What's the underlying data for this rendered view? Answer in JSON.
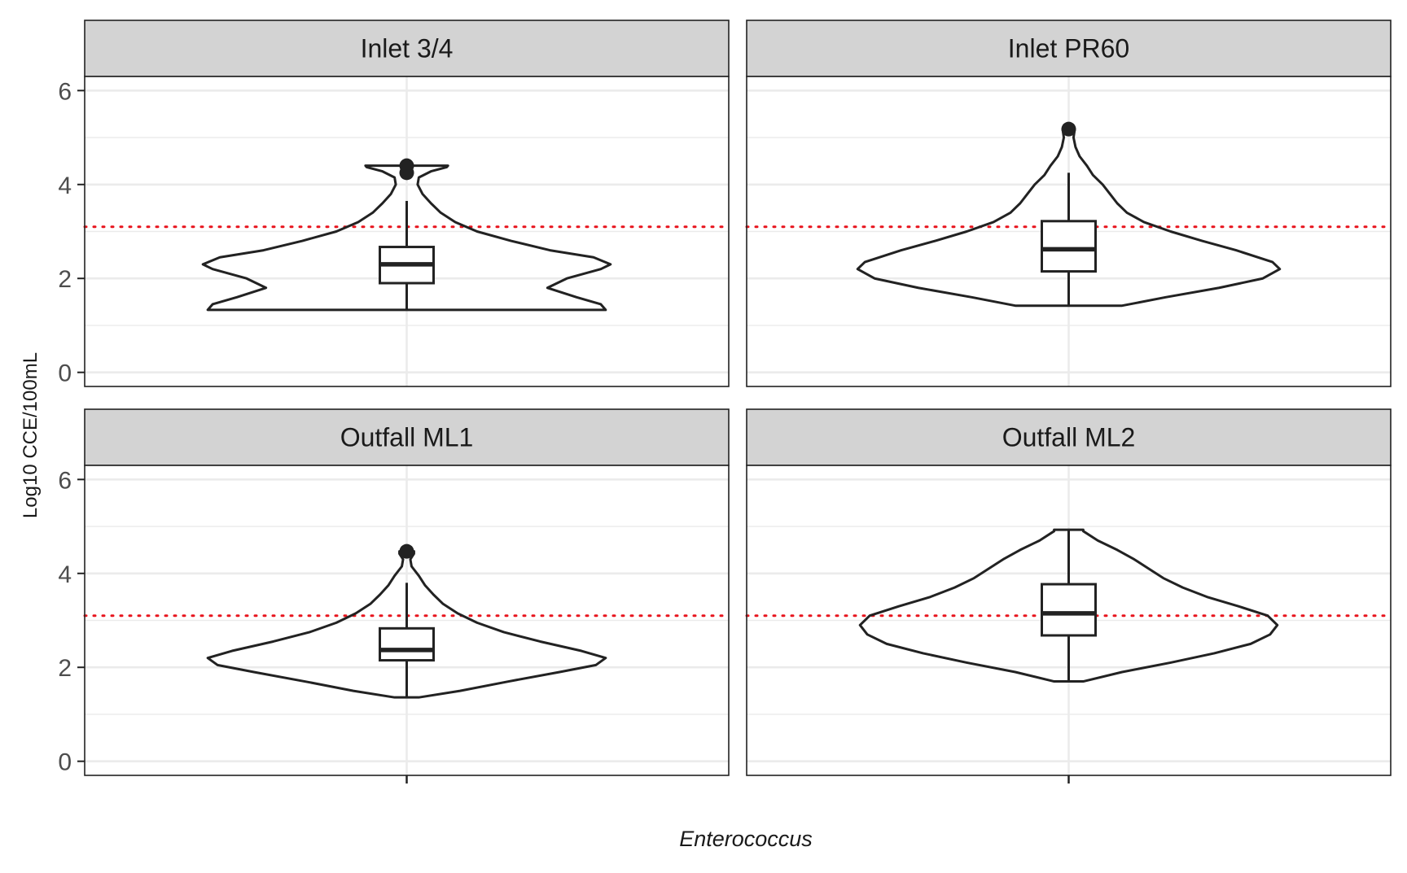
{
  "chart_data": {
    "type": "violin",
    "layout": "facet-grid-2x2",
    "xlabel": "Enterococcus",
    "ylabel": "Log10 CCE/100mL",
    "ylim": [
      -0.3,
      6.3
    ],
    "yticks": [
      0,
      2,
      4,
      6
    ],
    "grid": true,
    "reference_line": {
      "y": 3.1,
      "style": "dotted",
      "color": "#e8141d"
    },
    "colors": {
      "outline": "#222222",
      "strip_fill": "#d3d3d3",
      "grid": "#ebebeb",
      "reference": "#e8141d"
    },
    "panels": [
      {
        "strip": "Inlet 3/4",
        "min": 1.33,
        "q1": 1.9,
        "median": 2.3,
        "q3": 2.67,
        "whisker_high": 3.65,
        "outliers": [
          4.25,
          4.4
        ],
        "density": [
          [
            1.33,
            0.82
          ],
          [
            1.45,
            0.8
          ],
          [
            1.6,
            0.7
          ],
          [
            1.8,
            0.58
          ],
          [
            2.0,
            0.66
          ],
          [
            2.2,
            0.8
          ],
          [
            2.3,
            0.84
          ],
          [
            2.45,
            0.77
          ],
          [
            2.6,
            0.59
          ],
          [
            2.8,
            0.43
          ],
          [
            3.0,
            0.29
          ],
          [
            3.2,
            0.2
          ],
          [
            3.4,
            0.14
          ],
          [
            3.6,
            0.1
          ],
          [
            3.8,
            0.065
          ],
          [
            4.0,
            0.045
          ],
          [
            4.15,
            0.05
          ],
          [
            4.28,
            0.1
          ],
          [
            4.37,
            0.165
          ],
          [
            4.4,
            0.17
          ]
        ]
      },
      {
        "strip": "Inlet PR60",
        "min": 1.42,
        "q1": 2.15,
        "median": 2.62,
        "q3": 3.22,
        "whisker_high": 4.25,
        "outliers": [
          5.18
        ],
        "density": [
          [
            1.42,
            0.22
          ],
          [
            1.6,
            0.4
          ],
          [
            1.8,
            0.62
          ],
          [
            2.0,
            0.8
          ],
          [
            2.2,
            0.87
          ],
          [
            2.35,
            0.84
          ],
          [
            2.6,
            0.69
          ],
          [
            2.8,
            0.55
          ],
          [
            3.0,
            0.42
          ],
          [
            3.2,
            0.31
          ],
          [
            3.4,
            0.24
          ],
          [
            3.6,
            0.2
          ],
          [
            3.8,
            0.17
          ],
          [
            4.0,
            0.14
          ],
          [
            4.2,
            0.1
          ],
          [
            4.4,
            0.075
          ],
          [
            4.6,
            0.045
          ],
          [
            4.8,
            0.028
          ],
          [
            5.0,
            0.02
          ],
          [
            5.18,
            0.025
          ]
        ]
      },
      {
        "strip": "Outfall ML1",
        "min": 1.36,
        "q1": 2.15,
        "median": 2.37,
        "q3": 2.83,
        "whisker_high": 3.8,
        "outliers": [
          4.47
        ],
        "density": [
          [
            1.36,
            0.05
          ],
          [
            1.5,
            0.22
          ],
          [
            1.7,
            0.42
          ],
          [
            1.9,
            0.63
          ],
          [
            2.05,
            0.78
          ],
          [
            2.2,
            0.82
          ],
          [
            2.35,
            0.72
          ],
          [
            2.55,
            0.55
          ],
          [
            2.75,
            0.4
          ],
          [
            2.95,
            0.29
          ],
          [
            3.15,
            0.21
          ],
          [
            3.35,
            0.15
          ],
          [
            3.55,
            0.11
          ],
          [
            3.75,
            0.075
          ],
          [
            3.95,
            0.05
          ],
          [
            4.15,
            0.02
          ],
          [
            4.3,
            0.015
          ],
          [
            4.42,
            0.03
          ],
          [
            4.47,
            0.03
          ]
        ]
      },
      {
        "strip": "Outfall ML2",
        "min": 1.7,
        "q1": 2.68,
        "median": 3.15,
        "q3": 3.77,
        "whisker_high": 4.93,
        "outliers": [],
        "density": [
          [
            1.7,
            0.06
          ],
          [
            1.9,
            0.22
          ],
          [
            2.1,
            0.42
          ],
          [
            2.3,
            0.6
          ],
          [
            2.5,
            0.75
          ],
          [
            2.7,
            0.83
          ],
          [
            2.9,
            0.86
          ],
          [
            3.1,
            0.82
          ],
          [
            3.3,
            0.7
          ],
          [
            3.5,
            0.57
          ],
          [
            3.7,
            0.47
          ],
          [
            3.9,
            0.39
          ],
          [
            4.1,
            0.33
          ],
          [
            4.3,
            0.27
          ],
          [
            4.5,
            0.2
          ],
          [
            4.7,
            0.12
          ],
          [
            4.9,
            0.06
          ],
          [
            4.93,
            0.06
          ]
        ]
      }
    ]
  }
}
